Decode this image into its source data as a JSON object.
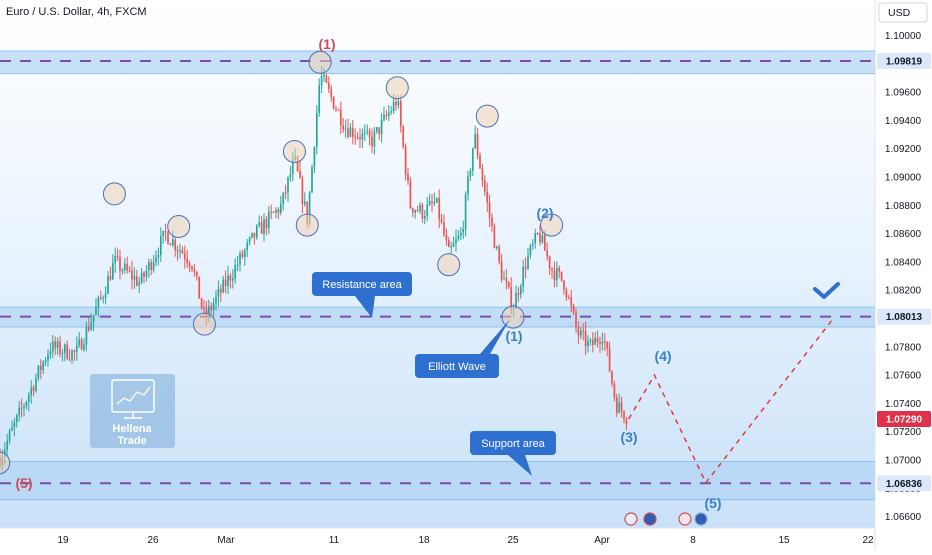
{
  "header": {
    "symbol_title": "Euro / U.S. Dollar, 4h, FXCM",
    "currency_button": "USD"
  },
  "colors": {
    "up": "#26a69a",
    "down": "#ef5350",
    "blue_label": "#3b82c4",
    "red_label": "#d04a5a",
    "zone": "#aed3f5",
    "dash": "#7b4ea8",
    "callout": "#2f6fd0",
    "projection": "#e23b3b",
    "price_tag": "#e0314b",
    "check": "#2f6fd0"
  },
  "chart_data": {
    "type": "candlestick",
    "timeframe": "4h",
    "y_axis": {
      "range": [
        1.0652,
        1.1025
      ],
      "ticks": [
        "1.10000",
        "1.09800",
        "1.09600",
        "1.09400",
        "1.09200",
        "1.09000",
        "1.08800",
        "1.08600",
        "1.08400",
        "1.08200",
        "1.08000",
        "1.07800",
        "1.07600",
        "1.07400",
        "1.07200",
        "1.07000",
        "1.06800",
        "1.06600"
      ]
    },
    "x_axis": {
      "labels": [
        "19",
        "26",
        "Mar",
        "11",
        "18",
        "25",
        "Apr",
        "8",
        "15",
        "22"
      ]
    },
    "levels": [
      {
        "name": "resistance-top",
        "price": "1.09819"
      },
      {
        "name": "resistance-mid",
        "price": "1.08013"
      },
      {
        "name": "support",
        "price": "1.06836"
      }
    ],
    "last_price": "1.07290",
    "zones": [
      {
        "label": "",
        "from": 1.0973,
        "to": 1.0989
      },
      {
        "label": "Resistance area",
        "from": 1.0794,
        "to": 1.0808
      },
      {
        "label": "Support area",
        "from": 1.0672,
        "to": 1.0699
      }
    ],
    "callouts": [
      "Resistance area",
      "Elliott Wave",
      "Support area"
    ],
    "wave_labels": [
      {
        "text": "(1)",
        "color": "red"
      },
      {
        "text": "(5)",
        "color": "red"
      },
      {
        "text": "(1)",
        "color": "blue"
      },
      {
        "text": "(2)",
        "color": "blue"
      },
      {
        "text": "(3)",
        "color": "blue"
      },
      {
        "text": "(4)",
        "color": "blue"
      },
      {
        "text": "(5)",
        "color": "blue"
      }
    ],
    "projection": [
      {
        "date": "Apr 3",
        "price": 1.0729
      },
      {
        "date": "Apr 5",
        "price": 1.076
      },
      {
        "date": "Apr 9",
        "price": 1.0684
      },
      {
        "date": "Apr 19",
        "price": 1.0801
      }
    ],
    "swing_points": [
      {
        "date": "Feb 14",
        "price": 1.0698
      },
      {
        "date": "Feb 23",
        "price": 1.0888
      },
      {
        "date": "Feb 28",
        "price": 1.0865
      },
      {
        "date": "Mar 1",
        "price": 1.0796
      },
      {
        "date": "Mar 8",
        "price": 1.0918
      },
      {
        "date": "Mar 9",
        "price": 1.0866
      },
      {
        "date": "Mar 10",
        "price": 1.0981
      },
      {
        "date": "Mar 16",
        "price": 1.0963
      },
      {
        "date": "Mar 20",
        "price": 1.0838
      },
      {
        "date": "Mar 23",
        "price": 1.0943
      },
      {
        "date": "Mar 25",
        "price": 1.0801
      },
      {
        "date": "Mar 28",
        "price": 1.0866
      }
    ],
    "price_path": [
      {
        "date": "Feb 13",
        "price": 1.077
      },
      {
        "date": "Feb 14",
        "price": 1.07
      },
      {
        "date": "Feb 16",
        "price": 1.074
      },
      {
        "date": "Feb 18",
        "price": 1.078
      },
      {
        "date": "Feb 20",
        "price": 1.0775
      },
      {
        "date": "Feb 22",
        "price": 1.0815
      },
      {
        "date": "Feb 23",
        "price": 1.084
      },
      {
        "date": "Feb 25",
        "price": 1.0825
      },
      {
        "date": "Feb 27",
        "price": 1.086
      },
      {
        "date": "Feb 29",
        "price": 1.084
      },
      {
        "date": "Mar 1",
        "price": 1.08
      },
      {
        "date": "Mar 3",
        "price": 1.083
      },
      {
        "date": "Mar 5",
        "price": 1.086
      },
      {
        "date": "Mar 7",
        "price": 1.088
      },
      {
        "date": "Mar 8",
        "price": 1.0912
      },
      {
        "date": "Mar 9",
        "price": 1.087
      },
      {
        "date": "Mar 10",
        "price": 1.0972
      },
      {
        "date": "Mar 12",
        "price": 1.0935
      },
      {
        "date": "Mar 14",
        "price": 1.0925
      },
      {
        "date": "Mar 16",
        "price": 1.0955
      },
      {
        "date": "Mar 17",
        "price": 1.088
      },
      {
        "date": "Mar 18",
        "price": 1.0875
      },
      {
        "date": "Mar 19",
        "price": 1.0882
      },
      {
        "date": "Mar 20",
        "price": 1.0845
      },
      {
        "date": "Mar 21",
        "price": 1.086
      },
      {
        "date": "Mar 22",
        "price": 1.093
      },
      {
        "date": "Mar 23",
        "price": 1.088
      },
      {
        "date": "Mar 24",
        "price": 1.0835
      },
      {
        "date": "Mar 25",
        "price": 1.0808
      },
      {
        "date": "Mar 26",
        "price": 1.084
      },
      {
        "date": "Mar 27",
        "price": 1.086
      },
      {
        "date": "Mar 28",
        "price": 1.0835
      },
      {
        "date": "Mar 29",
        "price": 1.0825
      },
      {
        "date": "Mar 30",
        "price": 1.079
      },
      {
        "date": "Mar 31",
        "price": 1.078
      },
      {
        "date": "Apr 1",
        "price": 1.079
      },
      {
        "date": "Apr 2",
        "price": 1.074
      },
      {
        "date": "Apr 3",
        "price": 1.0729
      }
    ]
  },
  "watermark": {
    "line1": "Hellena",
    "line2": "Trade"
  }
}
